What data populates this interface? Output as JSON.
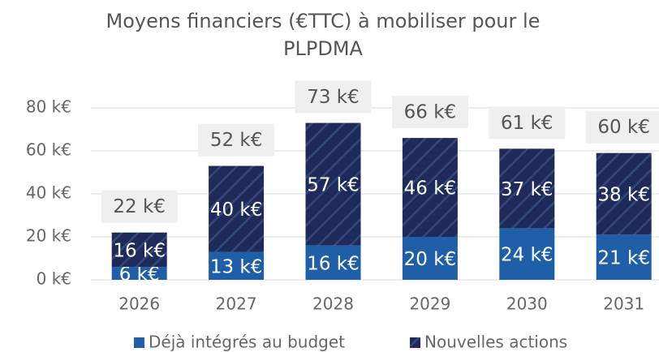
{
  "chart_data": {
    "type": "stacked_bar",
    "title": [
      "Moyens financiers (€TTC) à mobiliser pour le",
      "PLPDMA"
    ],
    "categories": [
      "2026",
      "2027",
      "2028",
      "2029",
      "2030",
      "2031"
    ],
    "series": [
      {
        "name": "Déjà intégrés au budget",
        "color": "#1f5fa8",
        "values": [
          6,
          13,
          16,
          20,
          24,
          21
        ],
        "value_labels": [
          "6 k€",
          "13 k€",
          "16 k€",
          "20 k€",
          "24 k€",
          "21 k€"
        ]
      },
      {
        "name": "Nouvelles actions",
        "color": "#1e2a5a",
        "values": [
          16,
          40,
          57,
          46,
          37,
          38
        ],
        "value_labels": [
          "16 k€",
          "40 k€",
          "57 k€",
          "46 k€",
          "37 k€",
          "38 k€"
        ]
      }
    ],
    "totals": {
      "values": [
        22,
        52,
        73,
        66,
        61,
        60
      ],
      "value_labels": [
        "22 k€",
        "52 k€",
        "73 k€",
        "66 k€",
        "61 k€",
        "60 k€"
      ]
    },
    "ylim": [
      0,
      80
    ],
    "yticks": [
      {
        "value": 0,
        "label": "0 k€"
      },
      {
        "value": 20,
        "label": "20 k€"
      },
      {
        "value": 40,
        "label": "40 k€"
      },
      {
        "value": 60,
        "label": "60 k€"
      },
      {
        "value": 80,
        "label": "80 k€"
      }
    ],
    "grid": true,
    "legend": "bottom"
  }
}
